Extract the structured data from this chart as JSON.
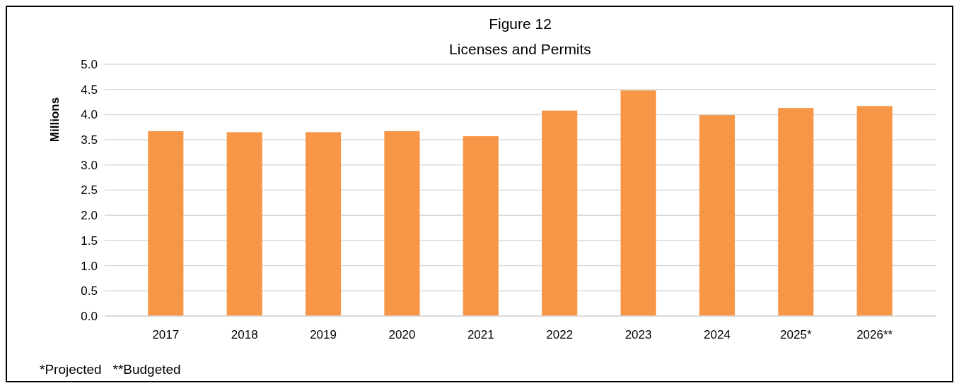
{
  "chart_data": {
    "type": "bar",
    "title": "Figure 12",
    "subtitle": "Licenses and Permits",
    "ylabel": "Millions",
    "categories": [
      "2017",
      "2018",
      "2019",
      "2020",
      "2021",
      "2022",
      "2023",
      "2024",
      "2025*",
      "2026**"
    ],
    "values": [
      3.67,
      3.65,
      3.65,
      3.67,
      3.57,
      4.08,
      4.48,
      3.99,
      4.13,
      4.17
    ],
    "color": "#f79646",
    "ylim": [
      0,
      5
    ],
    "yticks": [
      {
        "value": 0,
        "label": "0.0"
      },
      {
        "value": 0.5,
        "label": "0.5"
      },
      {
        "value": 1,
        "label": "1.0"
      },
      {
        "value": 1.5,
        "label": "1.5"
      },
      {
        "value": 2,
        "label": "2.0"
      },
      {
        "value": 2.5,
        "label": "2.5"
      },
      {
        "value": 3,
        "label": "3.0"
      },
      {
        "value": 3.5,
        "label": "3.5"
      },
      {
        "value": 4,
        "label": "4.0"
      },
      {
        "value": 4.5,
        "label": "4.5"
      },
      {
        "value": 5,
        "label": "5.0"
      }
    ],
    "grid": "y",
    "annotations": [
      "*Projected   **Budgeted"
    ]
  }
}
